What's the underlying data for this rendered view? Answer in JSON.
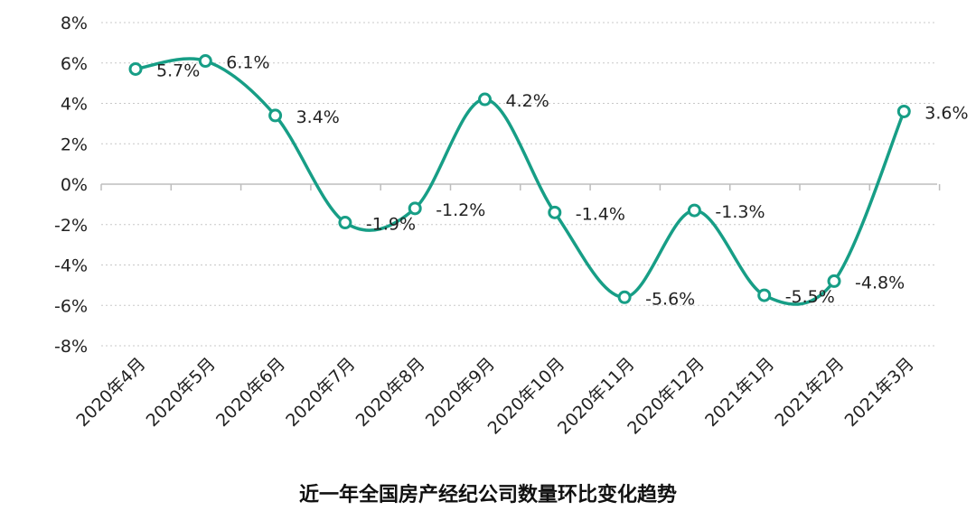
{
  "chart_data": {
    "type": "line",
    "title": "近一年全国房产经纪公司数量环比变化趋势",
    "categories": [
      "2020年4月",
      "2020年5月",
      "2020年6月",
      "2020年7月",
      "2020年8月",
      "2020年9月",
      "2020年10月",
      "2020年11月",
      "2020年12月",
      "2021年1月",
      "2021年2月",
      "2021年3月"
    ],
    "series": [
      {
        "values": [
          5.7,
          6.1,
          3.4,
          -1.9,
          -1.2,
          4.2,
          -1.4,
          -5.6,
          -1.3,
          -5.5,
          -4.8,
          3.6
        ],
        "labels": [
          "5.7%",
          "6.1%",
          "3.4%",
          "-1.9%",
          "-1.2%",
          "4.2%",
          "-1.4%",
          "-5.6%",
          "-1.3%",
          "-5.5%",
          "-4.8%",
          "3.6%"
        ]
      }
    ],
    "yticks": [
      8,
      6,
      4,
      2,
      0,
      -2,
      -4,
      -6,
      -8
    ],
    "ytick_labels": [
      "8%",
      "6%",
      "4%",
      "2%",
      "0%",
      "-2%",
      "-4%",
      "-6%",
      "-8%"
    ],
    "ylim": [
      -8,
      8
    ],
    "xlabel": "",
    "ylabel": "",
    "grid": true,
    "smooth": true,
    "line_color": "#179e86",
    "marker_fill": "#ffffff"
  }
}
